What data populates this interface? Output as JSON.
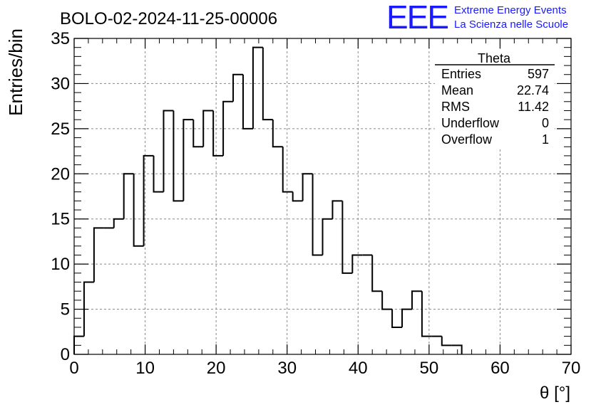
{
  "header": {
    "run_title": "BOLO-02-2024-11-25-00006",
    "logo_text": "EEE",
    "logo_line1": "Extreme Energy Events",
    "logo_line2": "La Scienza nelle Scuole",
    "logo_color": "#1a1aff"
  },
  "stats_box": {
    "title": "Theta",
    "rows": [
      {
        "label": "Entries",
        "value": "597"
      },
      {
        "label": "Mean",
        "value": "22.74"
      },
      {
        "label": "RMS",
        "value": "11.42"
      },
      {
        "label": "Underflow",
        "value": "0"
      },
      {
        "label": "Overflow",
        "value": "1"
      }
    ]
  },
  "chart_data": {
    "type": "bar",
    "style": "step-histogram",
    "title": "BOLO-02-2024-11-25-00006",
    "xlabel": "θ [°]",
    "ylabel": "Entries/bin",
    "xlim": [
      0,
      70
    ],
    "ylim": [
      0,
      35
    ],
    "bin_width": 1.4,
    "bin_start": 0,
    "values": [
      2,
      8,
      14,
      14,
      15,
      20,
      12,
      22,
      18,
      27,
      17,
      26,
      23,
      27,
      22,
      28,
      31,
      25,
      34,
      26,
      23,
      18,
      17,
      20,
      11,
      15,
      17,
      9,
      11,
      11,
      7,
      5,
      3,
      5,
      7,
      2,
      2,
      1,
      1
    ],
    "x_ticks": [
      "0",
      "10",
      "20",
      "30",
      "40",
      "50",
      "60",
      "70"
    ],
    "y_ticks": [
      "0",
      "5",
      "10",
      "15",
      "20",
      "25",
      "30",
      "35"
    ],
    "grid": true,
    "line_color": "#000000"
  }
}
